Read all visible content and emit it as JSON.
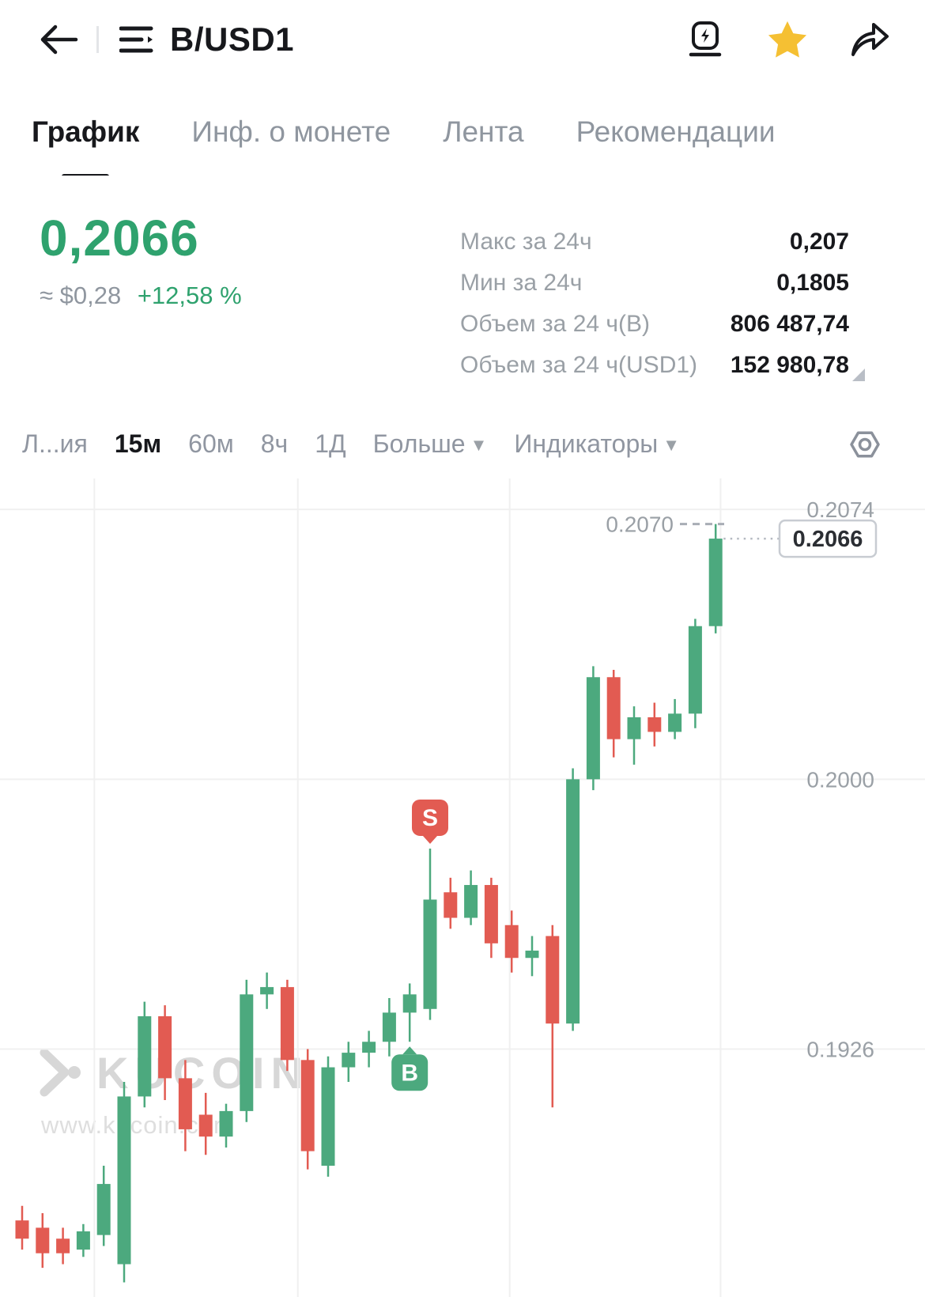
{
  "header": {
    "title": "B/USD1"
  },
  "tabs": [
    {
      "label": "График",
      "active": true
    },
    {
      "label": "Инф. о монете",
      "active": false
    },
    {
      "label": "Лента",
      "active": false
    },
    {
      "label": "Рекомендации",
      "active": false
    }
  ],
  "price": {
    "value": "0,2066",
    "fiat": "≈ $0,28",
    "change": "+12,58 %"
  },
  "stats": [
    {
      "label": "Макс за 24ч",
      "value": "0,207"
    },
    {
      "label": "Мин за 24ч",
      "value": "0,1805"
    },
    {
      "label": "Объем за 24 ч(B)",
      "value": "806 487,74"
    },
    {
      "label": "Объем за 24 ч(USD1)",
      "value": "152 980,78"
    }
  ],
  "toolbar": {
    "items": [
      "Л...ия",
      "15м",
      "60м",
      "8ч",
      "1Д",
      "Больше",
      "Индикаторы"
    ],
    "active": "15м"
  },
  "watermark": {
    "brand": "KUCOIN",
    "url": "www.kucoin.com"
  },
  "colors": {
    "up": "#4CA97E",
    "down": "#E25B52",
    "price_text": "#2FA26E",
    "star": "#F5C033",
    "grid": "#F0F0F0",
    "axis_text": "#9AA0A6"
  },
  "chart_data": {
    "type": "candlestick",
    "pair": "B/USD1",
    "interval": "15м",
    "title": "",
    "ylabel": "",
    "ylim": [
      0.1858,
      0.20825
    ],
    "grid_prices": [
      0.2074,
      0.2,
      0.1926
    ],
    "y_axis_labels": [
      "0.2074",
      "0.2000",
      "0.1926"
    ],
    "high_marker": {
      "price": 0.207,
      "label": "0.2070"
    },
    "last_price": {
      "price": 0.2066,
      "label": "0.2066"
    },
    "markers": [
      {
        "type": "B",
        "label": "B",
        "candle_index": 19,
        "position": "below"
      },
      {
        "type": "S",
        "label": "S",
        "candle_index": 20,
        "position": "above"
      }
    ],
    "candles_format": [
      "open",
      "high",
      "low",
      "close"
    ],
    "candles": [
      [
        0.1879,
        0.1883,
        0.1871,
        0.1874
      ],
      [
        0.1877,
        0.1881,
        0.1866,
        0.187
      ],
      [
        0.1874,
        0.1877,
        0.1867,
        0.187
      ],
      [
        0.1871,
        0.1878,
        0.1869,
        0.1876
      ],
      [
        0.1875,
        0.1894,
        0.1872,
        0.1889
      ],
      [
        0.1867,
        0.1917,
        0.1862,
        0.1913
      ],
      [
        0.1913,
        0.1939,
        0.191,
        0.1935
      ],
      [
        0.1935,
        0.1938,
        0.1912,
        0.1918
      ],
      [
        0.1918,
        0.1923,
        0.1898,
        0.1904
      ],
      [
        0.1908,
        0.1914,
        0.1897,
        0.1902
      ],
      [
        0.1902,
        0.1911,
        0.1899,
        0.1909
      ],
      [
        0.1909,
        0.1945,
        0.1906,
        0.1941
      ],
      [
        0.1941,
        0.1947,
        0.1937,
        0.1943
      ],
      [
        0.1943,
        0.1945,
        0.192,
        0.1923
      ],
      [
        0.1923,
        0.1926,
        0.1893,
        0.1898
      ],
      [
        0.1894,
        0.1924,
        0.1891,
        0.1921
      ],
      [
        0.1921,
        0.1928,
        0.1917,
        0.1925
      ],
      [
        0.1925,
        0.1931,
        0.1921,
        0.1928
      ],
      [
        0.1928,
        0.194,
        0.1924,
        0.1936
      ],
      [
        0.1936,
        0.1944,
        0.1928,
        0.1941
      ],
      [
        0.1937,
        0.1981,
        0.1934,
        0.1967
      ],
      [
        0.1969,
        0.1973,
        0.1959,
        0.1962
      ],
      [
        0.1962,
        0.1975,
        0.196,
        0.1971
      ],
      [
        0.1971,
        0.1973,
        0.1951,
        0.1955
      ],
      [
        0.196,
        0.1964,
        0.1947,
        0.1951
      ],
      [
        0.1951,
        0.1957,
        0.1946,
        0.1953
      ],
      [
        0.1957,
        0.196,
        0.191,
        0.1933
      ],
      [
        0.1933,
        0.2003,
        0.1931,
        0.2
      ],
      [
        0.2,
        0.2031,
        0.1997,
        0.2028
      ],
      [
        0.2028,
        0.203,
        0.2006,
        0.2011
      ],
      [
        0.2011,
        0.202,
        0.2004,
        0.2017
      ],
      [
        0.2017,
        0.2021,
        0.2009,
        0.2013
      ],
      [
        0.2013,
        0.2022,
        0.2011,
        0.2018
      ],
      [
        0.2018,
        0.2044,
        0.2014,
        0.2042
      ],
      [
        0.2042,
        0.207,
        0.204,
        0.2066
      ]
    ]
  }
}
